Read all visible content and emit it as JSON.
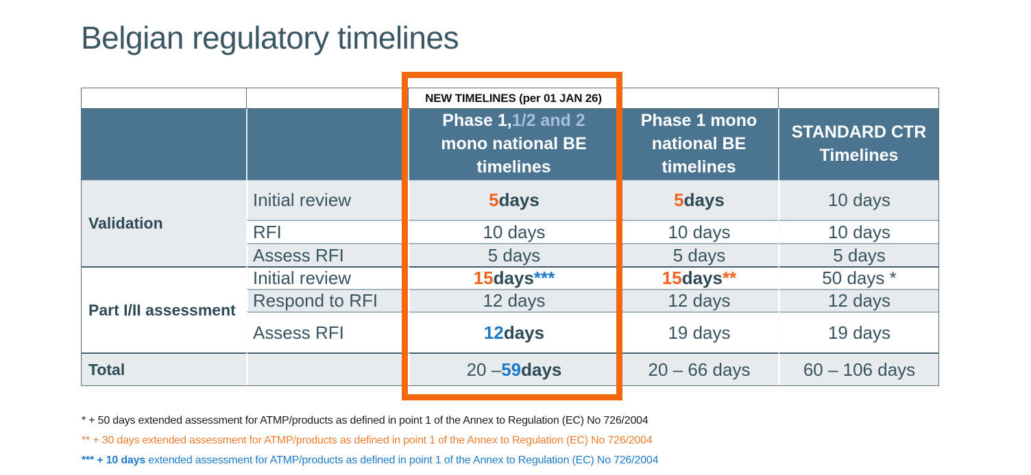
{
  "page": {
    "title": "Belgian regulatory timelines"
  },
  "colors": {
    "header_bg": "#4a7490",
    "row_alt_bg": "#e8ebee",
    "accent_orange": "#f2611d",
    "accent_blue": "#1b78c8",
    "highlight_box_orange": "#f2680f",
    "header_light_blue_text": "#a6bfdb",
    "footnote_orange": "#ed7d31",
    "footnote_blue": "#1f7ac9"
  },
  "table": {
    "banner": "NEW TIMELINES (per 01 JAN 26)",
    "headers": {
      "col3_white1": "Phase 1,",
      "col3_light": "1/2 and 2",
      "col3_white2": " mono national BE timelines",
      "col4": "Phase 1 mono national BE timelines",
      "col5": "STANDARD CTR Timelines"
    },
    "sections": {
      "validation": "Validation",
      "part": "Part I/II assessment",
      "total": "Total"
    },
    "rows": {
      "r1": {
        "label": "Initial review",
        "c3_num": "5",
        "c3_days": " days",
        "c4_num": "5",
        "c4_days": " days",
        "c5": "10 days"
      },
      "r2": {
        "label": "RFI",
        "c3": "10 days",
        "c4": "10 days",
        "c5": "10 days"
      },
      "r3": {
        "label": "Assess RFI",
        "c3": "5 days",
        "c4": "5 days",
        "c5": "5 days"
      },
      "r4": {
        "label": "Initial review",
        "c3_num": "15",
        "c3_days": " days",
        "c3_ast": " ***",
        "c4_num": "15",
        "c4_days": " days",
        "c4_ast": " **",
        "c5": "50 days *"
      },
      "r5": {
        "label": "Respond to RFI",
        "c3": "12 days",
        "c4": "12 days",
        "c5": "12 days"
      },
      "r6": {
        "label": "Assess RFI",
        "c3_num": "12",
        "c3_days": " days",
        "c4": "19 days",
        "c5": "19 days"
      },
      "total": {
        "c3_pre": "20 – ",
        "c3_num": "59",
        "c3_days": " days",
        "c4": "20 – 66 days",
        "c5": "60 – 106 days"
      }
    }
  },
  "footnotes": {
    "f1": "* + 50 days extended assessment for ATMP/products as defined in point 1 of the Annex to Regulation (EC) No 726/2004",
    "f2": "** + 30 days extended assessment for ATMP/products as defined in point 1 of the Annex to Regulation (EC) No 726/2004",
    "f3_bold": "*** + 10 days",
    "f3_rest": " extended assessment for ATMP/products as defined in point 1 of the Annex to Regulation (EC) No 726/2004"
  }
}
